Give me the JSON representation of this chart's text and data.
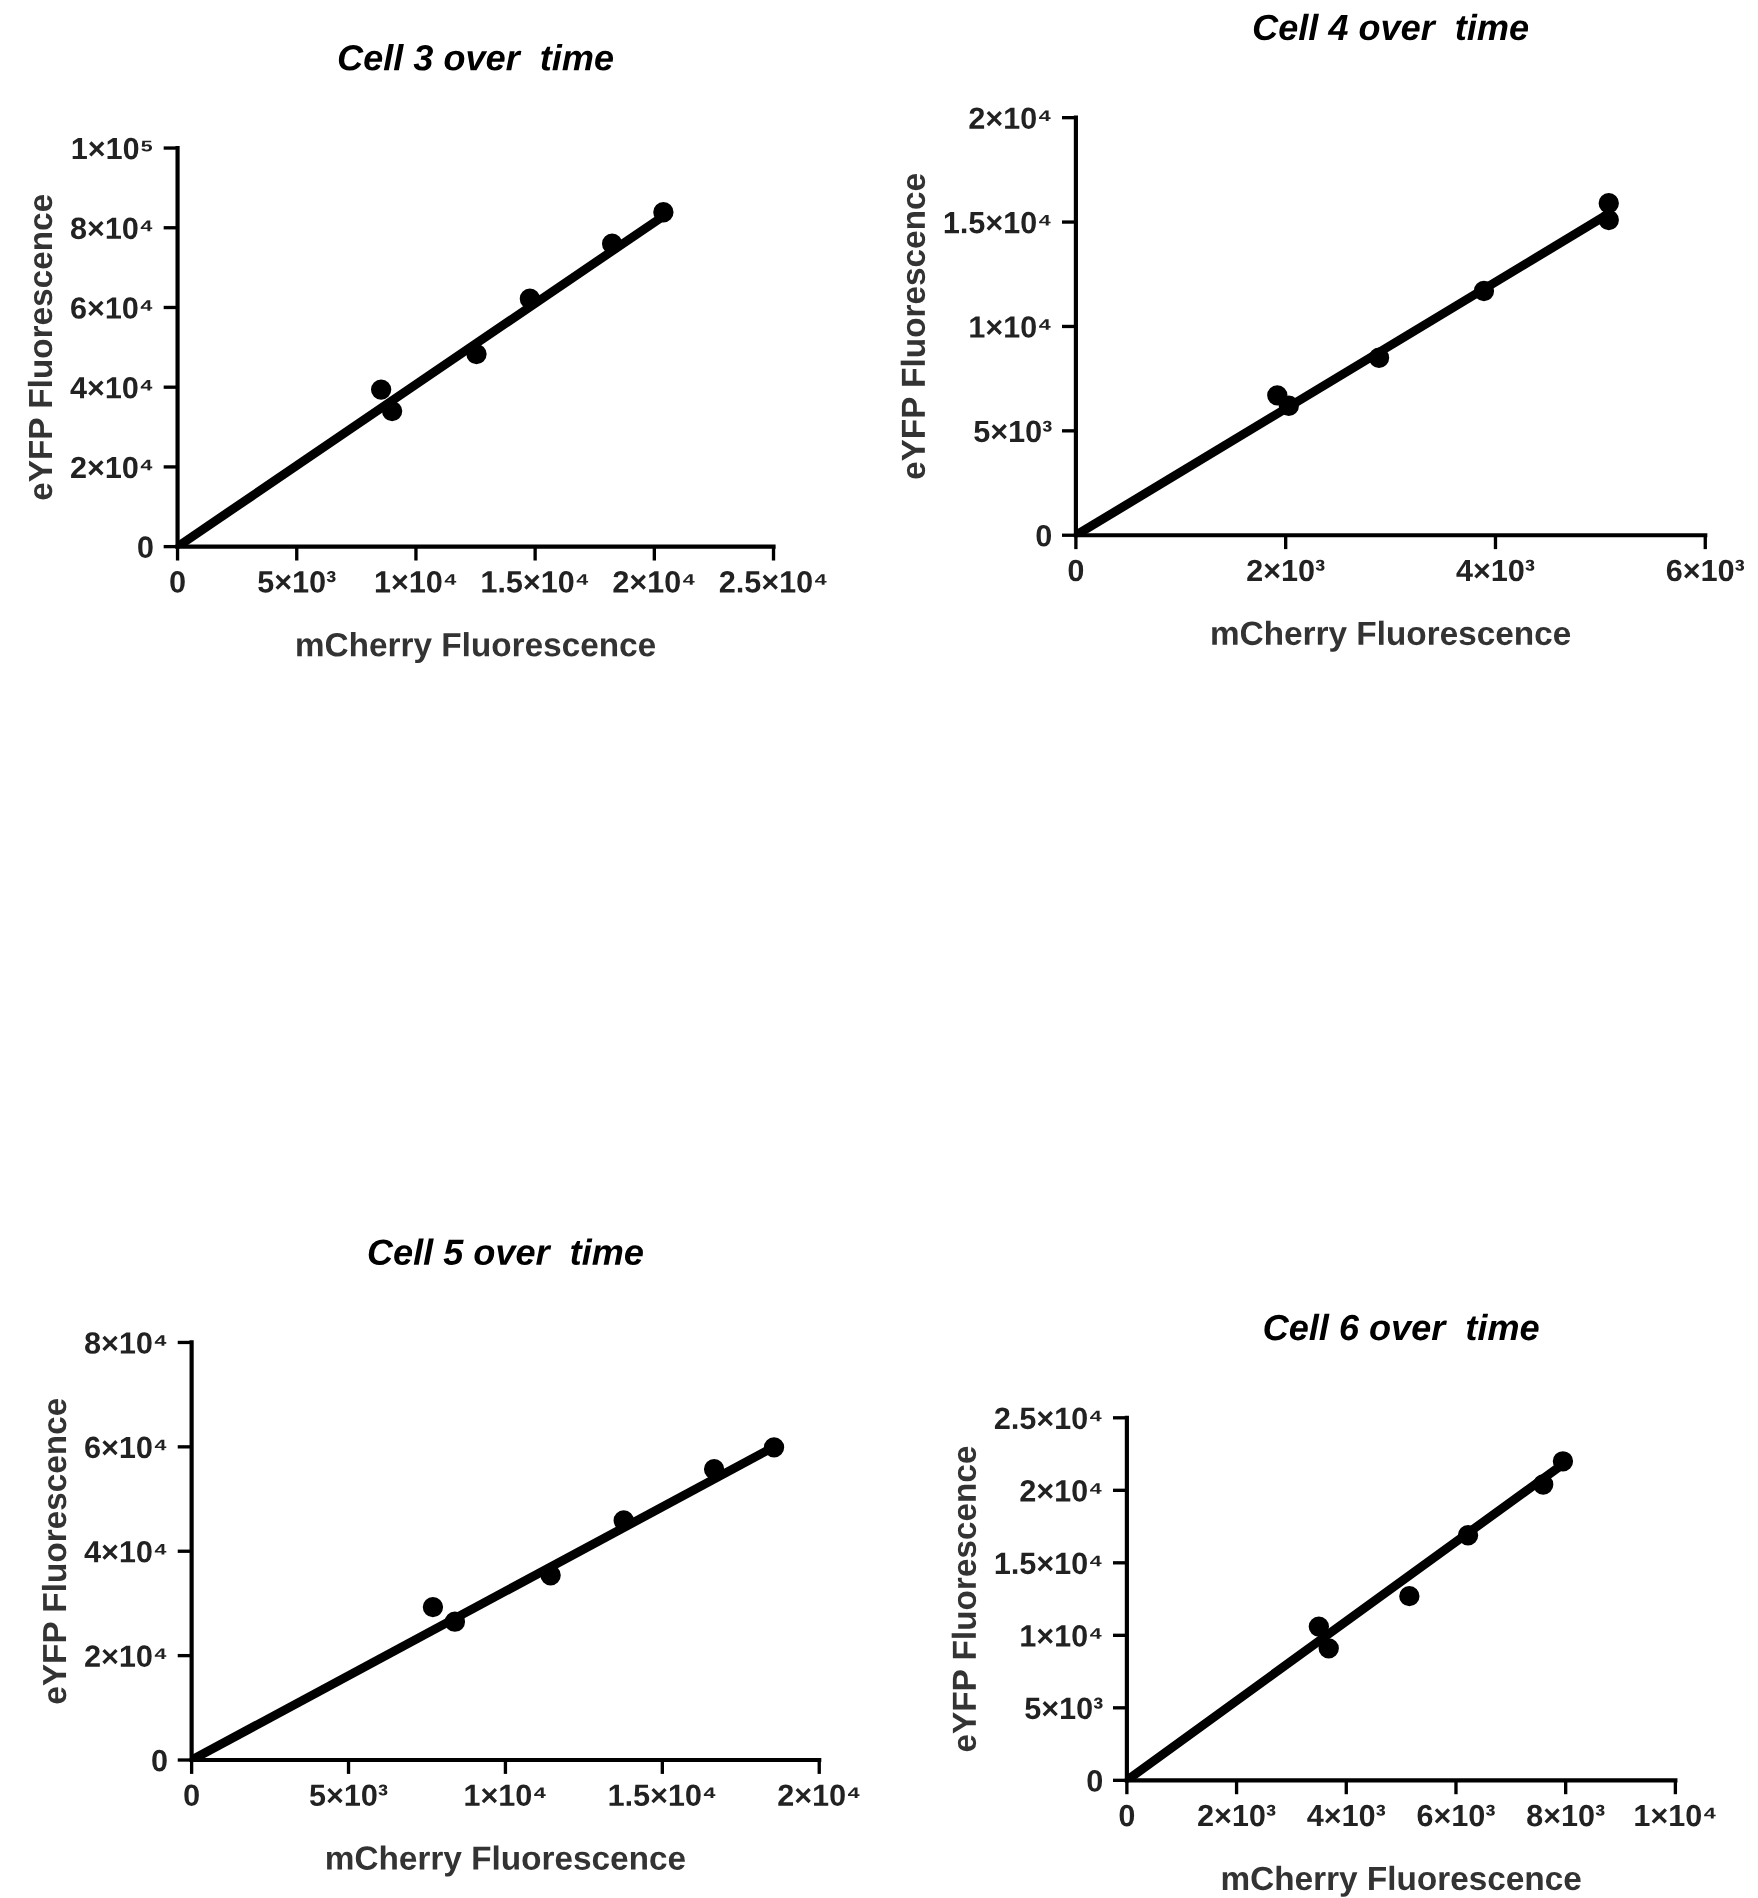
{
  "chart_data": [
    {
      "type": "scatter",
      "title": "Cell 3 over  time",
      "xlabel": "mCherry Fluorescence",
      "ylabel": "eYFP Fluorescence",
      "xlim": [
        0,
        25000
      ],
      "xticks": [
        0,
        {
          "value": 5000,
          "label": "5×10³"
        },
        {
          "value": 10000,
          "label": "1×10⁴"
        },
        {
          "value": 15000,
          "label": "1.5×10⁴"
        },
        {
          "value": 20000,
          "label": "2×10⁴"
        },
        {
          "value": 25000,
          "label": "2.5×10⁴"
        }
      ],
      "ylim": [
        0,
        100000
      ],
      "yticks": [
        0,
        {
          "value": 20000,
          "label": "2×10⁴"
        },
        {
          "value": 40000,
          "label": "4×10⁴"
        },
        {
          "value": 60000,
          "label": "6×10⁴"
        },
        {
          "value": 80000,
          "label": "8×10⁴"
        },
        {
          "value": 100000,
          "label": "1×10⁵"
        }
      ],
      "series": [
        {
          "color": "#000000",
          "marker": "circle",
          "x": [
            8540,
            9000,
            12540,
            14780,
            18230,
            20380
          ],
          "values": [
            39400,
            34000,
            48300,
            62200,
            76000,
            83900
          ]
        },
        {
          "type": "line",
          "color": "#000000",
          "x": [
            0,
            20400
          ],
          "values": [
            0,
            83000
          ]
        }
      ]
    },
    {
      "type": "scatter",
      "title": "Cell 4 over  time",
      "xlabel": "mCherry Fluorescence",
      "ylabel": "eYFP Fluorescence",
      "xlim": [
        0,
        6000
      ],
      "xticks": [
        0,
        {
          "value": 2000,
          "label": "2×10³"
        },
        {
          "value": 4000,
          "label": "4×10³"
        },
        {
          "value": 6000,
          "label": "6×10³"
        }
      ],
      "ylim": [
        0,
        20000
      ],
      "yticks": [
        0,
        {
          "value": 5000,
          "label": "5×10³"
        },
        {
          "value": 10000,
          "label": "1×10⁴"
        },
        {
          "value": 15000,
          "label": "1.5×10⁴"
        },
        {
          "value": 20000,
          "label": "2×10⁴"
        }
      ],
      "series": [
        {
          "color": "#000000",
          "marker": "circle",
          "x": [
            1920,
            2030,
            2890,
            3890,
            5080,
            5080
          ],
          "values": [
            6700,
            6200,
            8500,
            11700,
            15900,
            15100
          ]
        },
        {
          "type": "line",
          "color": "#000000",
          "x": [
            0,
            5080
          ],
          "values": [
            0,
            15400
          ]
        }
      ]
    },
    {
      "type": "scatter",
      "title": "Cell 5 over  time",
      "xlabel": "mCherry Fluorescence",
      "ylabel": "eYFP Fluorescence",
      "xlim": [
        0,
        20000
      ],
      "xticks": [
        0,
        {
          "value": 5000,
          "label": "5×10³"
        },
        {
          "value": 10000,
          "label": "1×10⁴"
        },
        {
          "value": 15000,
          "label": "1.5×10⁴"
        },
        {
          "value": 20000,
          "label": "2×10⁴"
        }
      ],
      "ylim": [
        0,
        80000
      ],
      "yticks": [
        0,
        {
          "value": 20000,
          "label": "2×10⁴"
        },
        {
          "value": 40000,
          "label": "4×10⁴"
        },
        {
          "value": 60000,
          "label": "6×10⁴"
        },
        {
          "value": 80000,
          "label": "8×10⁴"
        }
      ],
      "series": [
        {
          "color": "#000000",
          "marker": "circle",
          "x": [
            7690,
            8390,
            11440,
            13770,
            16650,
            18560
          ],
          "values": [
            29300,
            26500,
            35400,
            45900,
            55700,
            59900
          ]
        },
        {
          "type": "line",
          "color": "#000000",
          "x": [
            0,
            18560
          ],
          "values": [
            0,
            60000
          ]
        }
      ]
    },
    {
      "type": "scatter",
      "title": "Cell 6 over  time",
      "xlabel": "mCherry Fluorescence",
      "ylabel": "eYFP Fluorescence",
      "xlim": [
        0,
        10000
      ],
      "xticks": [
        0,
        {
          "value": 2000,
          "label": "2×10³"
        },
        {
          "value": 4000,
          "label": "4×10³"
        },
        {
          "value": 6000,
          "label": "6×10³"
        },
        {
          "value": 8000,
          "label": "8×10³"
        },
        {
          "value": 10000,
          "label": "1×10⁴"
        }
      ],
      "ylim": [
        0,
        25000
      ],
      "yticks": [
        0,
        {
          "value": 5000,
          "label": "5×10³"
        },
        {
          "value": 10000,
          "label": "1×10⁴"
        },
        {
          "value": 15000,
          "label": "1.5×10⁴"
        },
        {
          "value": 20000,
          "label": "2×10⁴"
        },
        {
          "value": 25000,
          "label": "2.5×10⁴"
        }
      ],
      "series": [
        {
          "color": "#000000",
          "marker": "circle",
          "x": [
            3500,
            3630,
            3680,
            5150,
            6220,
            7590,
            7950
          ],
          "values": [
            10600,
            null,
            9100,
            12700,
            16900,
            20400,
            22000
          ]
        },
        {
          "type": "line",
          "color": "#000000",
          "x": [
            0,
            7950
          ],
          "values": [
            0,
            21800
          ]
        }
      ]
    }
  ]
}
